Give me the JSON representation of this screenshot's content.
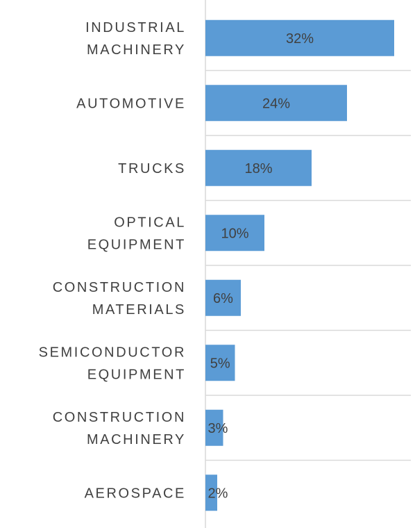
{
  "chart_data": {
    "type": "bar",
    "orientation": "horizontal",
    "categories": [
      [
        "INDUSTRIAL",
        "MACHINERY"
      ],
      [
        "AUTOMOTIVE"
      ],
      [
        "TRUCKS"
      ],
      [
        "OPTICAL",
        "EQUIPMENT"
      ],
      [
        "CONSTRUCTION",
        "MATERIALS"
      ],
      [
        "SEMICONDUCTOR",
        "EQUIPMENT"
      ],
      [
        "CONSTRUCTION",
        "MACHINERY"
      ],
      [
        "AEROSPACE"
      ]
    ],
    "values": [
      32,
      24,
      18,
      10,
      6,
      5,
      3,
      2
    ],
    "data_labels": [
      "32%",
      "24%",
      "18%",
      "10%",
      "6%",
      "5%",
      "3%",
      "2%"
    ],
    "xlim": [
      0,
      35
    ],
    "bar_color": "#5b9bd5",
    "label_color": "#404040",
    "grid_color": "#d9d9d9",
    "grid": true,
    "legend": false
  }
}
